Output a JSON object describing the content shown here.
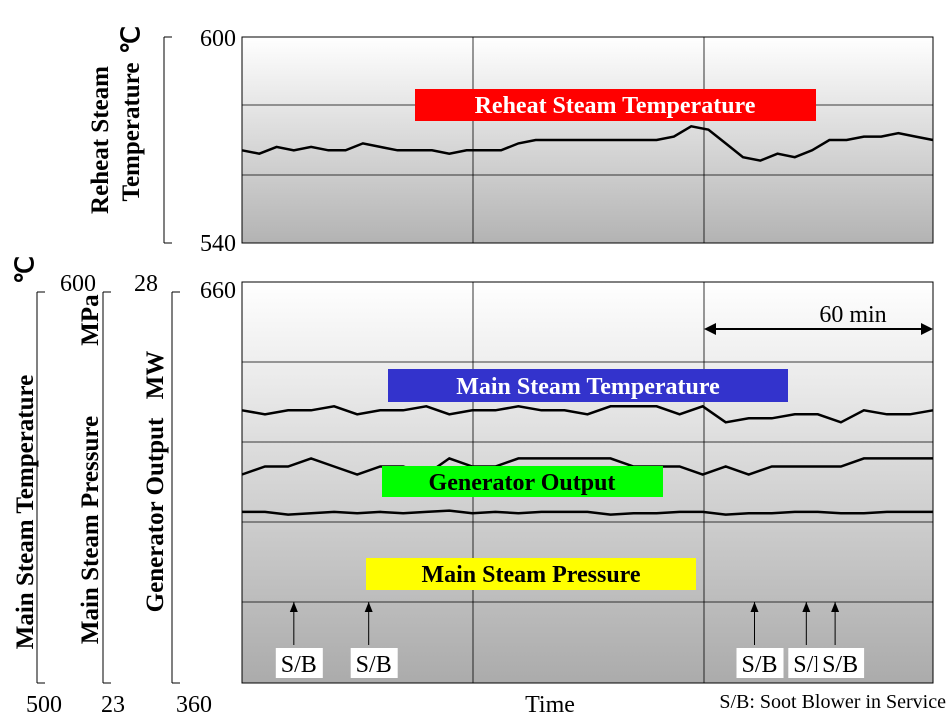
{
  "chart_data": [
    {
      "type": "line",
      "panel": "top",
      "ylabel_line1": "Reheat Steam",
      "ylabel_line2": "Temperature",
      "ylabel_unit": "℃",
      "ylim": [
        540,
        600
      ],
      "ticks": [
        "600",
        "540"
      ],
      "grid": true,
      "series": [
        {
          "name": "Reheat Steam Temperature",
          "label_color": "#ff0000",
          "label_text_color": "#ffffff",
          "x": [
            0,
            3,
            6,
            9,
            12,
            15,
            18,
            21,
            24,
            27,
            30,
            33,
            36,
            39,
            42,
            45,
            48,
            51,
            54,
            57,
            60,
            63,
            66,
            69,
            72,
            75,
            78,
            81,
            84,
            87,
            90,
            93,
            96,
            99,
            102,
            105,
            108,
            111,
            114,
            117,
            120
          ],
          "values": [
            567,
            566,
            568,
            567,
            568,
            567,
            567,
            569,
            568,
            567,
            567,
            567,
            566,
            567,
            567,
            567,
            569,
            570,
            570,
            570,
            570,
            570,
            570,
            570,
            570,
            571,
            574,
            573,
            569,
            565,
            564,
            566,
            565,
            567,
            570,
            570,
            571,
            571,
            572,
            571,
            570
          ]
        }
      ]
    },
    {
      "type": "line",
      "panel": "bottom",
      "xlabel": "Time",
      "axes": [
        {
          "label": "Main Steam Temperature",
          "unit": "℃",
          "top": "600",
          "bottom": "500"
        },
        {
          "label": "Main Steam Pressure",
          "unit": "MPa",
          "top": "28",
          "bottom": "23"
        },
        {
          "label": "Generator Output",
          "unit": "MW",
          "top": "660",
          "bottom": "360"
        }
      ],
      "grid": true,
      "duration_annotation": "60 min",
      "series": [
        {
          "name": "Main Steam Temperature",
          "label_color": "#3333cc",
          "label_text_color": "#ffffff",
          "x": [
            0,
            4,
            8,
            12,
            16,
            20,
            24,
            28,
            32,
            36,
            40,
            44,
            48,
            52,
            56,
            60,
            64,
            68,
            72,
            76,
            80,
            84,
            88,
            92,
            96,
            100,
            104,
            108,
            112,
            116,
            120
          ],
          "values": [
            568,
            567,
            568,
            568,
            569,
            567,
            568,
            568,
            569,
            567,
            568,
            568,
            569,
            568,
            568,
            567,
            569,
            569,
            569,
            567,
            569,
            565,
            566,
            566,
            567,
            567,
            565,
            568,
            567,
            567,
            568
          ]
        },
        {
          "name": "Generator Output",
          "label_color": "#00ff00",
          "label_text_color": "#000000",
          "x": [
            0,
            4,
            8,
            12,
            16,
            20,
            24,
            28,
            32,
            36,
            40,
            44,
            48,
            52,
            56,
            60,
            64,
            68,
            72,
            76,
            80,
            84,
            88,
            92,
            96,
            100,
            104,
            108,
            112,
            116,
            120
          ],
          "values": [
            488,
            488,
            486,
            487,
            488,
            487,
            488,
            487,
            488,
            489,
            487,
            488,
            487,
            488,
            488,
            488,
            486,
            487,
            487,
            488,
            488,
            486,
            487,
            487,
            488,
            488,
            487,
            487,
            488,
            488,
            488
          ]
        },
        {
          "name": "Main Steam Pressure",
          "label_color": "#ffff00",
          "label_text_color": "#000000",
          "x": [
            0,
            4,
            8,
            12,
            16,
            20,
            24,
            28,
            32,
            36,
            40,
            44,
            48,
            52,
            56,
            60,
            64,
            68,
            72,
            76,
            80,
            84,
            88,
            92,
            96,
            100,
            104,
            108,
            112,
            116,
            120
          ],
          "values": [
            25.6,
            25.7,
            25.7,
            25.8,
            25.7,
            25.6,
            25.7,
            25.7,
            25.6,
            25.8,
            25.7,
            25.7,
            25.8,
            25.8,
            25.8,
            25.8,
            25.8,
            25.7,
            25.7,
            25.7,
            25.6,
            25.7,
            25.6,
            25.7,
            25.7,
            25.7,
            25.7,
            25.8,
            25.8,
            25.8,
            25.8
          ]
        }
      ],
      "soot_blower_events": [
        {
          "x": 9,
          "label": "S/B"
        },
        {
          "x": 22,
          "label": "S/B"
        },
        {
          "x": 89,
          "label": "S/B"
        },
        {
          "x": 98,
          "label": "S/B"
        },
        {
          "x": 103,
          "label": "S/B"
        }
      ],
      "footnote": "S/B:  Soot Blower in Service"
    }
  ]
}
